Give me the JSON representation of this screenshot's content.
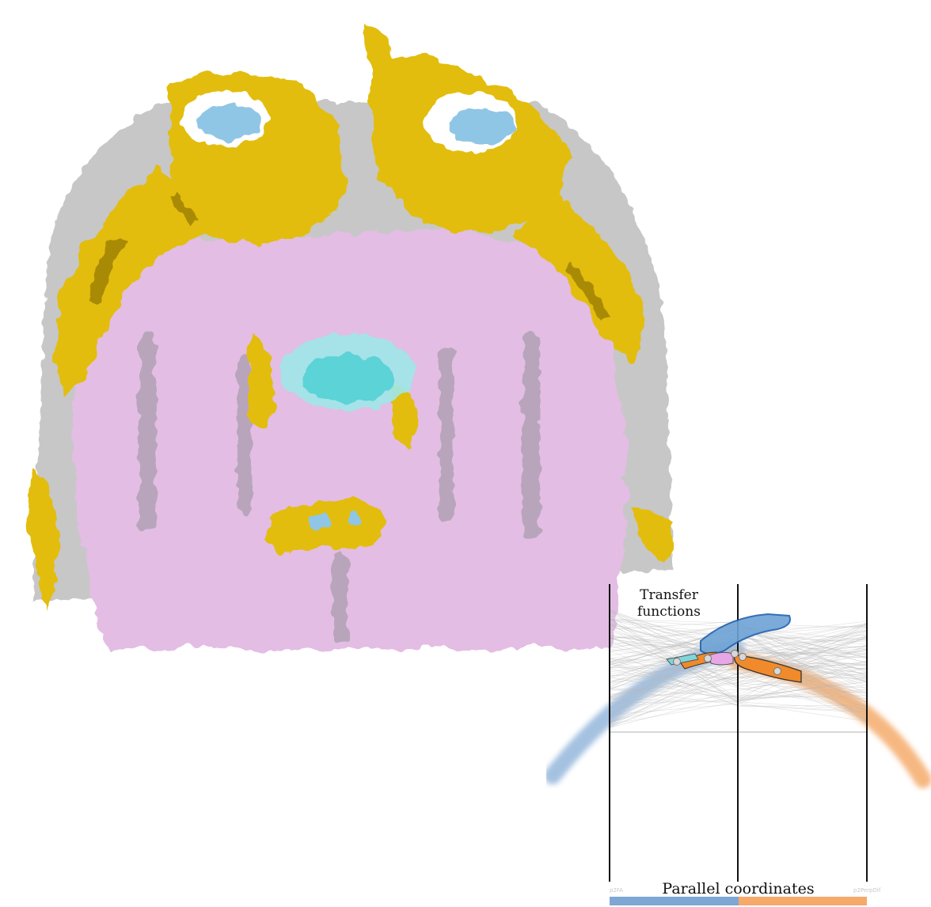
{
  "labels": {
    "transfer_functions": "Transfer\nfunctions",
    "parallel_coordinates": "Parallel coordinates",
    "axis_left": "p2FA",
    "axis_right": "p2PerpDif"
  },
  "colors": {
    "bone": "#e2bd10",
    "bone_dark": "#b08a05",
    "tissue": "#e3bde3",
    "cavity": "#7fd2d8",
    "cavity_blue": "#8fc6e6",
    "axis_line": "#111111",
    "series_blue": "#7ea7d4",
    "series_orange": "#f39a4e",
    "polyline_gray": "#b8b8b8"
  },
  "icons": {
    "volume": "volume-render-image",
    "widgets": "transfer-function-widget"
  }
}
